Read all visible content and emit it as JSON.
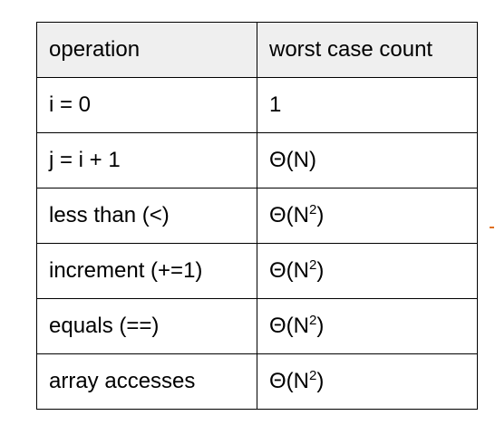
{
  "table": {
    "headers": {
      "operation": "operation",
      "count": "worst case count"
    },
    "rows": [
      {
        "operation": "i = 0",
        "count_base": "1",
        "count_sup": "",
        "count_tail": ""
      },
      {
        "operation": "j = i + 1",
        "count_base": "Θ(N)",
        "count_sup": "",
        "count_tail": ""
      },
      {
        "operation": "less than (<)",
        "count_base": "Θ(N",
        "count_sup": "2",
        "count_tail": ")"
      },
      {
        "operation": "increment (+=1)",
        "count_base": "Θ(N",
        "count_sup": "2",
        "count_tail": ")"
      },
      {
        "operation": "equals (==)",
        "count_base": "Θ(N",
        "count_sup": "2",
        "count_tail": ")"
      },
      {
        "operation": "array accesses",
        "count_base": "Θ(N",
        "count_sup": "2",
        "count_tail": ")"
      }
    ]
  },
  "colors": {
    "header_background": "#efefef",
    "border": "#000000",
    "marker": "#e07020"
  }
}
